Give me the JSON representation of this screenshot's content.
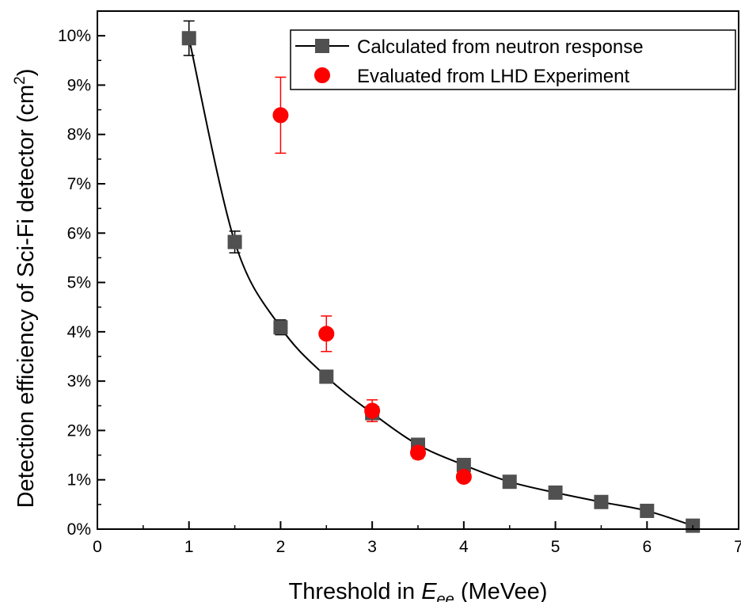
{
  "chart_data": {
    "type": "scatter",
    "xlabel": {
      "prefix": "Threshold in ",
      "var": "E",
      "sub": "ee",
      "suffix": " (MeVee)"
    },
    "ylabel": {
      "main": "Detection efficiency of Sci-Fi detector (cm",
      "sup": "2",
      "close": ")"
    },
    "xlim": [
      0,
      7
    ],
    "ylim": [
      0,
      10.5
    ],
    "xticks": [
      0,
      1,
      2,
      3,
      4,
      5,
      6,
      7
    ],
    "yticks": [
      0,
      1,
      2,
      3,
      4,
      5,
      6,
      7,
      8,
      9,
      10
    ],
    "ytick_format": "%",
    "grid": false,
    "legend_position": "top-right",
    "series": [
      {
        "name": "Calculated from neutron response",
        "marker": "square",
        "line": true,
        "color": "#505050",
        "x": [
          1.0,
          1.5,
          2.0,
          2.5,
          3.0,
          3.5,
          4.0,
          4.5,
          5.0,
          5.5,
          6.0,
          6.5
        ],
        "y": [
          9.95,
          5.82,
          4.09,
          3.09,
          2.35,
          1.71,
          1.3,
          0.96,
          0.74,
          0.55,
          0.37,
          0.07
        ],
        "yerr": [
          0.35,
          0.22,
          0.15,
          0.08,
          0.08,
          0.06,
          0.05,
          0.03,
          0.03,
          0.02,
          0.02,
          0.02
        ]
      },
      {
        "name": "Evaluated from LHD Experiment",
        "marker": "circle",
        "line": false,
        "color": "#ff0000",
        "x": [
          2.0,
          2.5,
          3.0,
          3.5,
          4.0
        ],
        "y": [
          8.39,
          3.96,
          2.4,
          1.55,
          1.06
        ],
        "yerr": [
          0.77,
          0.36,
          0.22,
          0.12,
          0.08
        ]
      }
    ]
  }
}
